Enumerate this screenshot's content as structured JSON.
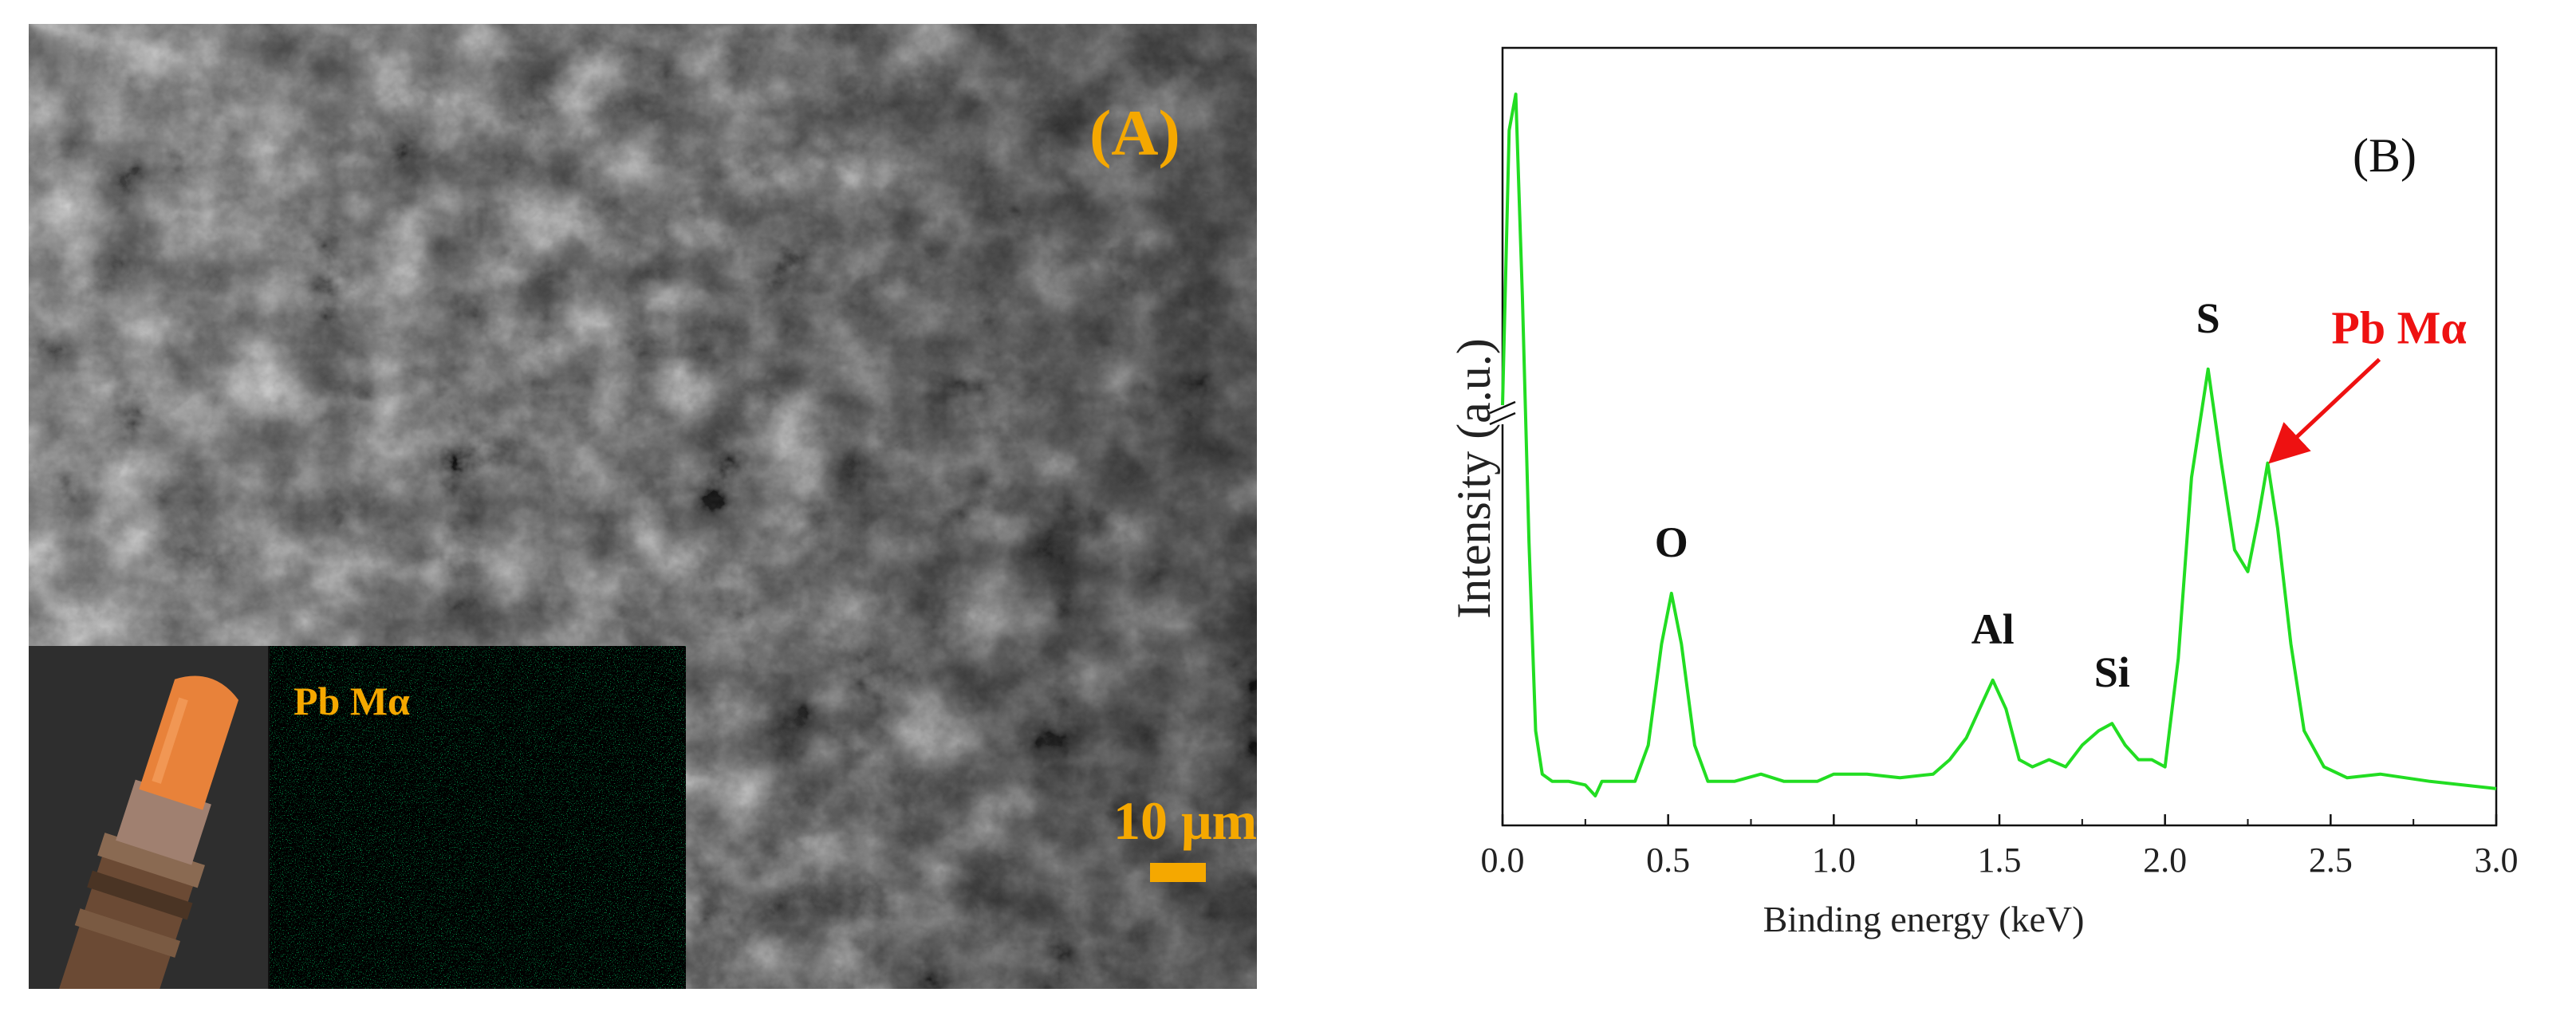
{
  "panel_a": {
    "label": "(A)",
    "inset_map_label": "Pb Mα",
    "scale_label": "10 μm"
  },
  "chart_data": {
    "type": "line",
    "panel_label": "(B)",
    "xlabel": "Binding energy (keV)",
    "ylabel": "Intensity (a.u.)",
    "xlim": [
      0.0,
      3.0
    ],
    "xticks": [
      "0.0",
      "0.5",
      "1.0",
      "1.5",
      "2.0",
      "2.5",
      "3.0"
    ],
    "y_axis_break": true,
    "grid": false,
    "series_color": "#22dd22",
    "annotation_color": "#ee1111",
    "series": [
      {
        "x": [
          0.0,
          0.02,
          0.04,
          0.06,
          0.08,
          0.1,
          0.12,
          0.15,
          0.2,
          0.25,
          0.28,
          0.3,
          0.35,
          0.4,
          0.44,
          0.48,
          0.51,
          0.54,
          0.58,
          0.62,
          0.7,
          0.78,
          0.85,
          0.95,
          1.0,
          1.1,
          1.2,
          1.3,
          1.35,
          1.4,
          1.45,
          1.48,
          1.52,
          1.56,
          1.6,
          1.65,
          1.7,
          1.75,
          1.8,
          1.84,
          1.88,
          1.92,
          1.96,
          2.0,
          2.04,
          2.08,
          2.13,
          2.17,
          2.21,
          2.25,
          2.28,
          2.31,
          2.34,
          2.38,
          2.42,
          2.48,
          2.55,
          2.65,
          2.8,
          3.0
        ],
        "y": [
          55,
          93,
          98,
          70,
          36,
          10,
          4,
          3,
          3,
          2.5,
          1,
          3,
          3,
          3,
          8,
          22,
          29,
          22,
          8,
          3,
          3,
          4,
          3,
          3,
          4,
          4,
          3.5,
          4,
          6,
          9,
          14,
          17,
          13,
          6,
          5,
          6,
          5,
          8,
          10,
          11,
          8,
          6,
          6,
          5,
          20,
          45,
          60,
          47,
          35,
          32,
          39,
          47,
          38,
          22,
          10,
          5,
          3.5,
          4,
          3,
          2
        ]
      }
    ],
    "annotations": [
      {
        "text": "O",
        "x": 0.51
      },
      {
        "text": "Al",
        "x": 1.48
      },
      {
        "text": "Si",
        "x": 1.84
      },
      {
        "text": "S",
        "x": 2.13
      },
      {
        "text": "Pb Mα",
        "x": 2.31
      }
    ]
  }
}
